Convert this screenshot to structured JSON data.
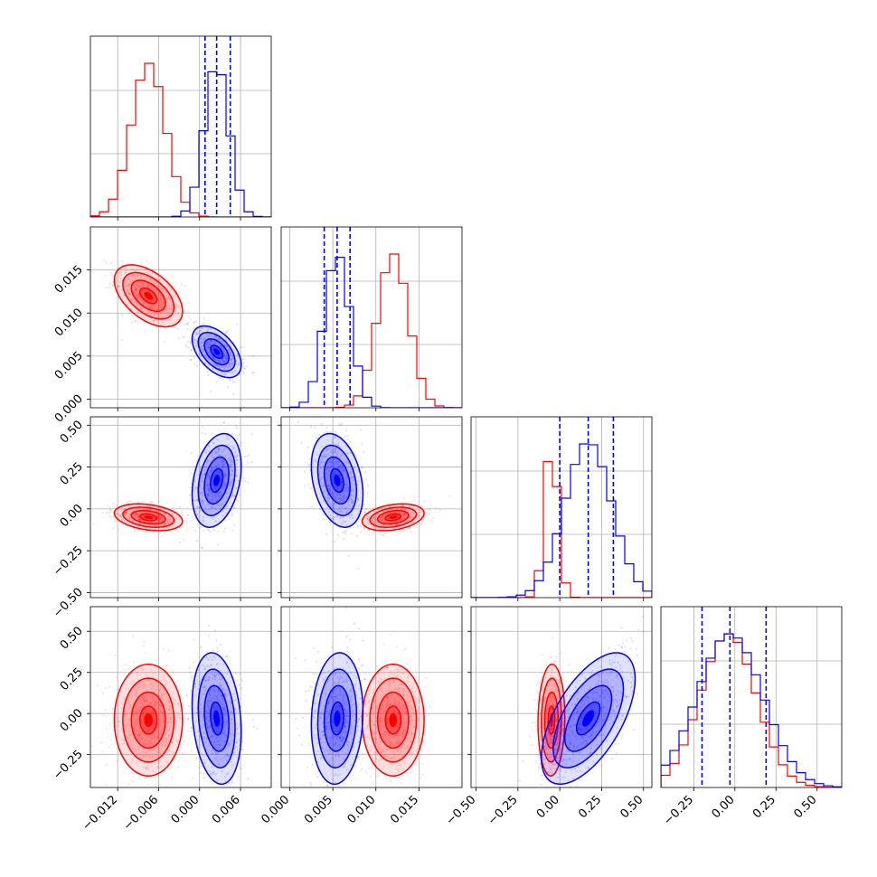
{
  "chart_data": {
    "type": "corner",
    "parameters": 4,
    "grid": true,
    "colors": {
      "series_a": "#ff0000",
      "series_b": "#0000ff"
    },
    "series": [
      {
        "color": "#ff0000",
        "mean": [
          -0.0075,
          0.012,
          -0.05,
          -0.04
        ],
        "std": [
          0.0025,
          0.0018,
          0.04,
          0.17
        ],
        "corr": [
          [
            1,
            -0.5,
            -0.3,
            0
          ],
          [
            -0.5,
            1,
            0.3,
            0
          ],
          [
            -0.3,
            0.3,
            1,
            0.05
          ],
          [
            0,
            0,
            0.05,
            1
          ]
        ],
        "quantiles": null
      },
      {
        "color": "#0000ff",
        "mean": [
          0.0025,
          0.0055,
          0.17,
          -0.03
        ],
        "std": [
          0.0018,
          0.0015,
          0.14,
          0.2
        ],
        "corr": [
          [
            1,
            -0.5,
            0.3,
            -0.2
          ],
          [
            -0.5,
            1,
            -0.3,
            0.1
          ],
          [
            0.3,
            -0.3,
            1,
            0.6
          ],
          [
            -0.2,
            0.1,
            0.6,
            1
          ]
        ],
        "quantiles": [
          [
            0.0008,
            0.0025,
            0.0045
          ],
          [
            0.004,
            0.0055,
            0.007
          ],
          [
            0.0,
            0.17,
            0.32
          ],
          [
            -0.2,
            -0.03,
            0.19
          ]
        ]
      }
    ],
    "axes": [
      {
        "range": [
          -0.016,
          0.0105
        ],
        "ticks": [
          -0.012,
          -0.006,
          0.0,
          0.006
        ],
        "tick_labels": [
          "−0.012",
          "−0.006",
          "0.000",
          "0.006"
        ]
      },
      {
        "range": [
          -0.001,
          0.02
        ],
        "ticks": [
          0.0,
          0.005,
          0.01,
          0.015
        ],
        "tick_labels": [
          "0.000",
          "0.005",
          "0.010",
          "0.015"
        ]
      },
      {
        "range": [
          -0.53,
          0.55
        ],
        "ticks": [
          -0.5,
          -0.25,
          0.0,
          0.25,
          0.5
        ],
        "tick_labels": [
          "−0.50",
          "−0.25",
          "0.00",
          "0.25",
          "0.50"
        ]
      },
      {
        "range": [
          -0.45,
          0.65
        ],
        "ticks": [
          -0.25,
          0.0,
          0.25,
          0.5
        ],
        "tick_labels": [
          "−0.25",
          "0.00",
          "0.25",
          "0.50"
        ]
      }
    ]
  }
}
